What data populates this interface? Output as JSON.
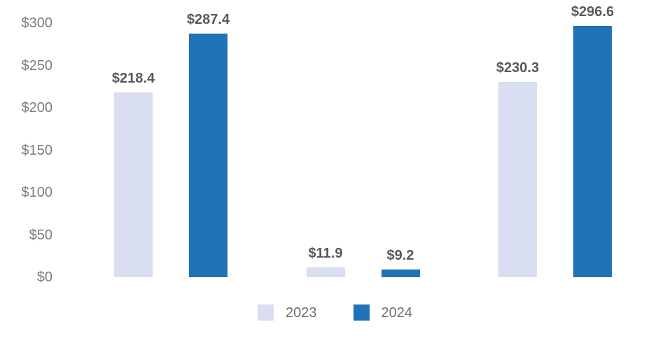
{
  "chart_data": {
    "type": "bar",
    "title": "",
    "categories": [
      "",
      "",
      ""
    ],
    "series": [
      {
        "name": "2023",
        "color": "#D9DEF0",
        "values": [
          218.4,
          11.9,
          230.3
        ],
        "data_labels": [
          "$218.4",
          "$11.9",
          "$230.3"
        ]
      },
      {
        "name": "2024",
        "color": "#1F72B5",
        "values": [
          287.4,
          9.2,
          296.6
        ],
        "data_labels": [
          "$287.4",
          "$9.2",
          "$296.6"
        ]
      }
    ],
    "xlabel": "",
    "ylabel": "",
    "ylim": [
      0,
      300
    ],
    "y_ticks": [
      {
        "value": 300,
        "label": "$300"
      },
      {
        "value": 250,
        "label": "$250"
      },
      {
        "value": 200,
        "label": "$200"
      },
      {
        "value": 150,
        "label": "$150"
      },
      {
        "value": 100,
        "label": "$100"
      },
      {
        "value": 50,
        "label": "$50"
      },
      {
        "value": 0,
        "label": "$0"
      }
    ],
    "grid": false,
    "x_axis_line": false,
    "legend": {
      "position": "bottom",
      "entries": [
        "2023",
        "2024"
      ]
    }
  },
  "colors": {
    "series_2023": "#D9DEF0",
    "series_2024": "#1F72B5",
    "axis_label_text": "#7B7C7E",
    "data_label_text": "#58595B",
    "legend_text": "#6D6E71",
    "background": "#FFFFFF"
  }
}
